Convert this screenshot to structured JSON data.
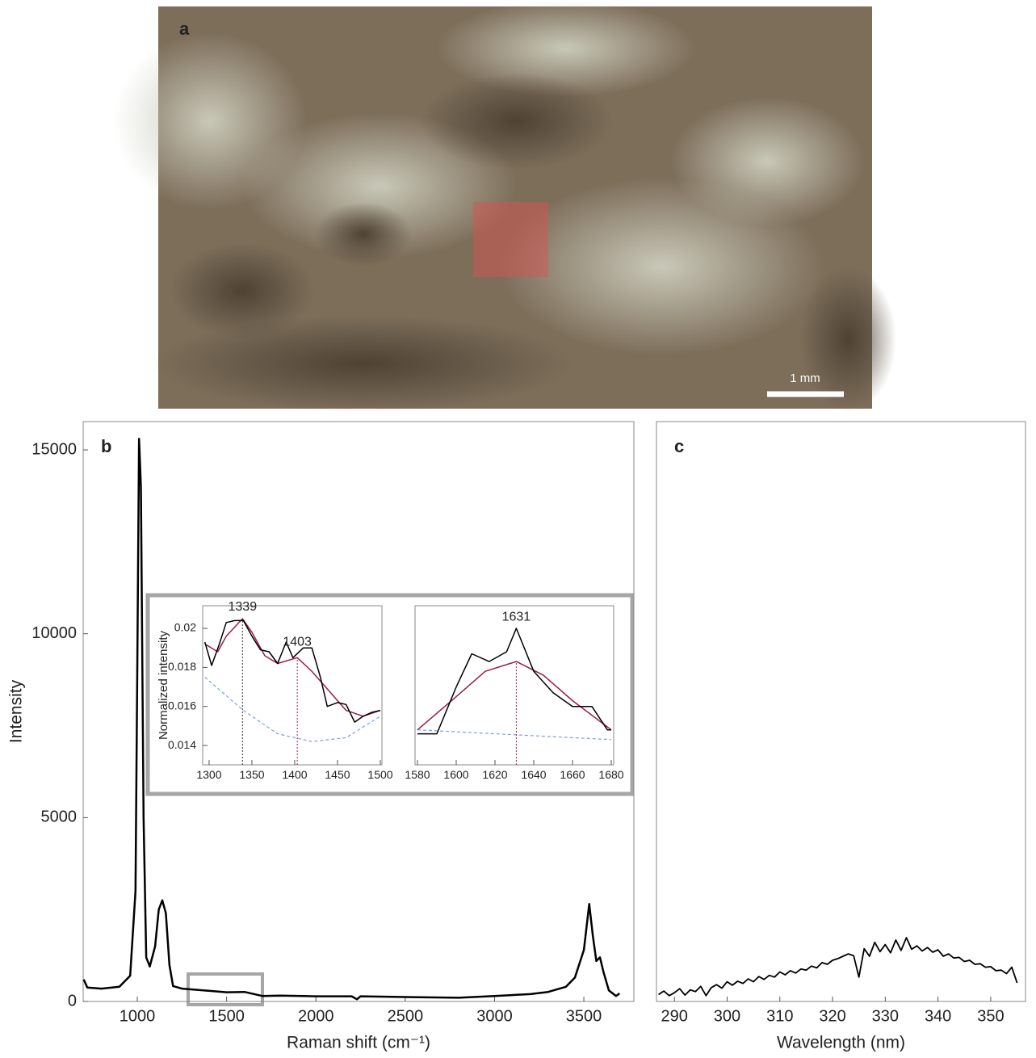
{
  "photo": {
    "label": "a",
    "scale_bar": "1 mm"
  },
  "chart_data": [
    {
      "type": "line",
      "panel_label": "b",
      "x_label": "Raman shift (cm⁻¹)",
      "y_label": "Intensity",
      "xlim": [
        697,
        3780
      ],
      "ylim": [
        0,
        15770
      ],
      "xticks": [
        1000,
        1500,
        2000,
        2500,
        3000,
        3500
      ],
      "yticks": [
        0,
        5000,
        10000,
        15000
      ],
      "series": [
        {
          "color": "#000000",
          "x": [
            700,
            720,
            800,
            900,
            960,
            990,
            1000,
            1010,
            1020,
            1035,
            1050,
            1070,
            1100,
            1120,
            1140,
            1160,
            1180,
            1200,
            1250,
            1300,
            1400,
            1500,
            1600,
            1700,
            1800,
            2000,
            2200,
            2230,
            2250,
            2500,
            2800,
            3000,
            3200,
            3300,
            3400,
            3450,
            3500,
            3530,
            3550,
            3570,
            3590,
            3610,
            3640,
            3680,
            3700
          ],
          "values": [
            600,
            380,
            350,
            400,
            700,
            3000,
            9000,
            15300,
            14000,
            5000,
            1200,
            950,
            1500,
            2500,
            2750,
            2400,
            1000,
            420,
            350,
            330,
            290,
            250,
            260,
            150,
            160,
            140,
            140,
            60,
            140,
            120,
            100,
            150,
            200,
            260,
            400,
            650,
            1400,
            2650,
            1800,
            1100,
            1200,
            800,
            300,
            150,
            220
          ]
        }
      ]
    },
    {
      "type": "line",
      "y_label": "Normalized intensity",
      "xlim": [
        1292.5,
        1501.9
      ],
      "ylim": [
        0.01301,
        0.02116
      ],
      "xticks": [
        1300,
        1350,
        1400,
        1450,
        1500
      ],
      "yticks": [
        0.014,
        0.016,
        0.018,
        0.02
      ],
      "peaks": [
        {
          "value": 1339,
          "label": "1339"
        },
        {
          "value": 1403,
          "label": "1403"
        }
      ],
      "series": [
        {
          "color": "#7aa0e0",
          "dash": true,
          "x": [
            1295,
            1340,
            1380,
            1420,
            1460,
            1500
          ],
          "values": [
            0.0175,
            0.0158,
            0.0146,
            0.0142,
            0.0144,
            0.0155
          ]
        },
        {
          "color": "#9b1b4a",
          "x": [
            1295,
            1310,
            1320,
            1339,
            1350,
            1365,
            1380,
            1403,
            1420,
            1440,
            1460,
            1480,
            1500
          ],
          "values": [
            0.0192,
            0.0188,
            0.0196,
            0.0205,
            0.0198,
            0.0186,
            0.0182,
            0.0185,
            0.0178,
            0.0168,
            0.0158,
            0.0155,
            0.0158
          ]
        },
        {
          "color": "#000000",
          "x": [
            1295,
            1303,
            1312,
            1320,
            1330,
            1340,
            1350,
            1360,
            1370,
            1380,
            1390,
            1398,
            1410,
            1420,
            1430,
            1438,
            1450,
            1460,
            1470,
            1480,
            1490,
            1500
          ],
          "values": [
            0.0193,
            0.0181,
            0.0192,
            0.0203,
            0.0204,
            0.0204,
            0.0196,
            0.0189,
            0.0188,
            0.0182,
            0.0193,
            0.0185,
            0.019,
            0.019,
            0.0175,
            0.016,
            0.0162,
            0.0161,
            0.0152,
            0.0155,
            0.0157,
            0.0158
          ]
        }
      ]
    },
    {
      "type": "line",
      "xlim": [
        1578.75,
        1681.25
      ],
      "ylim": [
        0.01301,
        0.02116
      ],
      "xticks": [
        1580,
        1600,
        1620,
        1640,
        1660,
        1680
      ],
      "peaks": [
        {
          "value": 1631,
          "label": "1631"
        }
      ],
      "series": [
        {
          "color": "#7aa0e0",
          "dash": true,
          "x": [
            1580,
            1680
          ],
          "values": [
            0.0148,
            0.0143
          ]
        },
        {
          "color": "#9b1b4a",
          "x": [
            1580,
            1600,
            1615,
            1631,
            1645,
            1660,
            1680
          ],
          "values": [
            0.0148,
            0.0165,
            0.0178,
            0.0183,
            0.0176,
            0.0163,
            0.0148
          ]
        },
        {
          "color": "#000000",
          "x": [
            1580,
            1590,
            1600,
            1608,
            1617,
            1626,
            1631,
            1640,
            1650,
            1660,
            1670,
            1678,
            1680
          ],
          "values": [
            0.0146,
            0.0146,
            0.017,
            0.0187,
            0.0183,
            0.0188,
            0.02,
            0.0178,
            0.0167,
            0.016,
            0.016,
            0.0148,
            0.0148
          ]
        }
      ]
    },
    {
      "type": "line",
      "panel_label": "c",
      "x_label": "Wavelength (nm)",
      "xlim": [
        286.6,
        356.6
      ],
      "ylim": [
        0,
        100
      ],
      "xticks": [
        290,
        300,
        310,
        320,
        330,
        340,
        350
      ],
      "series": [
        {
          "color": "#000000",
          "x": [
            287,
            288,
            289,
            290,
            291,
            292,
            293,
            294,
            295,
            296,
            297,
            298,
            299,
            300,
            301,
            302,
            303,
            304,
            305,
            306,
            307,
            308,
            309,
            310,
            311,
            312,
            313,
            314,
            315,
            316,
            317,
            318,
            319,
            320,
            321,
            322,
            323,
            324,
            325,
            326,
            327,
            328,
            329,
            330,
            331,
            332,
            333,
            334,
            335,
            336,
            337,
            338,
            339,
            340,
            341,
            342,
            343,
            344,
            345,
            346,
            347,
            348,
            349,
            350,
            351,
            352,
            353,
            354,
            355
          ],
          "values": [
            1.2,
            1.8,
            1.0,
            1.5,
            2.2,
            1.1,
            2.0,
            1.7,
            2.6,
            1.0,
            2.4,
            2.9,
            2.3,
            3.4,
            2.8,
            3.5,
            3.1,
            3.9,
            3.4,
            4.3,
            3.8,
            4.5,
            4.2,
            5.1,
            4.6,
            5.3,
            4.9,
            5.6,
            5.4,
            6.1,
            5.8,
            6.7,
            6.4,
            7.1,
            7.4,
            7.8,
            8.2,
            7.9,
            4.2,
            9.1,
            7.8,
            10.2,
            8.6,
            9.8,
            8.4,
            10.6,
            8.8,
            11.0,
            9.0,
            9.6,
            8.7,
            9.3,
            8.5,
            8.9,
            7.8,
            8.2,
            7.5,
            7.6,
            6.9,
            7.1,
            6.4,
            6.5,
            5.9,
            6.0,
            5.3,
            5.4,
            4.8,
            5.9,
            3.2
          ]
        }
      ]
    }
  ]
}
